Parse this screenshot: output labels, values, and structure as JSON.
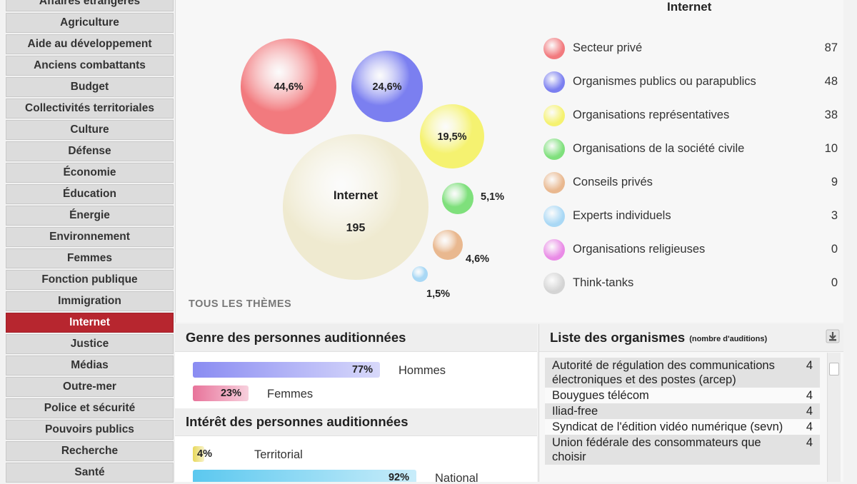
{
  "sidebar": {
    "items": [
      {
        "label": "Affaires étrangères",
        "active": false
      },
      {
        "label": "Agriculture",
        "active": false
      },
      {
        "label": "Aide au développement",
        "active": false
      },
      {
        "label": "Anciens combattants",
        "active": false
      },
      {
        "label": "Budget",
        "active": false
      },
      {
        "label": "Collectivités territoriales",
        "active": false
      },
      {
        "label": "Culture",
        "active": false
      },
      {
        "label": "Défense",
        "active": false
      },
      {
        "label": "Économie",
        "active": false
      },
      {
        "label": "Éducation",
        "active": false
      },
      {
        "label": "Énergie",
        "active": false
      },
      {
        "label": "Environnement",
        "active": false
      },
      {
        "label": "Femmes",
        "active": false
      },
      {
        "label": "Fonction publique",
        "active": false
      },
      {
        "label": "Immigration",
        "active": false
      },
      {
        "label": "Internet",
        "active": true
      },
      {
        "label": "Justice",
        "active": false
      },
      {
        "label": "Médias",
        "active": false
      },
      {
        "label": "Outre-mer",
        "active": false
      },
      {
        "label": "Police et sécurité",
        "active": false
      },
      {
        "label": "Pouvoirs publics",
        "active": false
      },
      {
        "label": "Recherche",
        "active": false
      },
      {
        "label": "Santé",
        "active": false
      }
    ]
  },
  "bubble_chart": {
    "center_label": "Internet",
    "center_value": "195",
    "all_themes_label": "TOUS LES THÈMES",
    "slices": [
      {
        "pct": "44,6%",
        "color": "#f27a7e"
      },
      {
        "pct": "24,6%",
        "color": "#7b7ff0"
      },
      {
        "pct": "19,5%",
        "color": "#f5f270"
      },
      {
        "pct": "5,1%",
        "color": "#7fe07c"
      },
      {
        "pct": "4,6%",
        "color": "#e9b88f"
      },
      {
        "pct": "1,5%",
        "color": "#a9d8f5"
      }
    ],
    "center_color": "#efead0"
  },
  "legend": {
    "title": "Internet",
    "items": [
      {
        "label": "Secteur privé",
        "count": "87",
        "color": "#f27a7e"
      },
      {
        "label": "Organismes publics ou parapublics",
        "count": "48",
        "color": "#7b7ff0"
      },
      {
        "label": "Organisations représentatives",
        "count": "38",
        "color": "#f5f270"
      },
      {
        "label": "Organisations de la société civile",
        "count": "10",
        "color": "#7fe07c"
      },
      {
        "label": "Conseils privés",
        "count": "9",
        "color": "#e9b88f"
      },
      {
        "label": "Experts individuels",
        "count": "3",
        "color": "#a9d8f5"
      },
      {
        "label": "Organisations religieuses",
        "count": "0",
        "color": "#e98be6"
      },
      {
        "label": "Think-tanks",
        "count": "0",
        "color": "#d4d4d4"
      }
    ]
  },
  "gender": {
    "title": "Genre des personnes auditionnées",
    "bars": [
      {
        "pct_label": "77%",
        "value": 0.77,
        "label": "Hommes",
        "color": "#8a8cf2"
      },
      {
        "pct_label": "23%",
        "value": 0.23,
        "label": "Femmes",
        "color": "#e8739a"
      }
    ]
  },
  "interest": {
    "title": "Intérêt des personnes auditionnées",
    "bars": [
      {
        "pct_label": "4%",
        "value": 0.04,
        "label": "Territorial",
        "color": "#e8d85a"
      },
      {
        "pct_label": "92%",
        "value": 0.92,
        "label": "National",
        "color": "#5bc8ef"
      }
    ]
  },
  "organizations": {
    "title": "Liste des organismes",
    "subtitle": "(nombre d'auditions)",
    "rows": [
      {
        "name": "Autorité de régulation des communications électroniques et des postes (arcep)",
        "count": "4"
      },
      {
        "name": "Bouygues télécom",
        "count": "4"
      },
      {
        "name": "Iliad-free",
        "count": "4"
      },
      {
        "name": "Syndicat de l'édition vidéo numérique (sevn)",
        "count": "4"
      },
      {
        "name": "Union fédérale des consommateurs que choisir",
        "count": "4"
      }
    ]
  }
}
